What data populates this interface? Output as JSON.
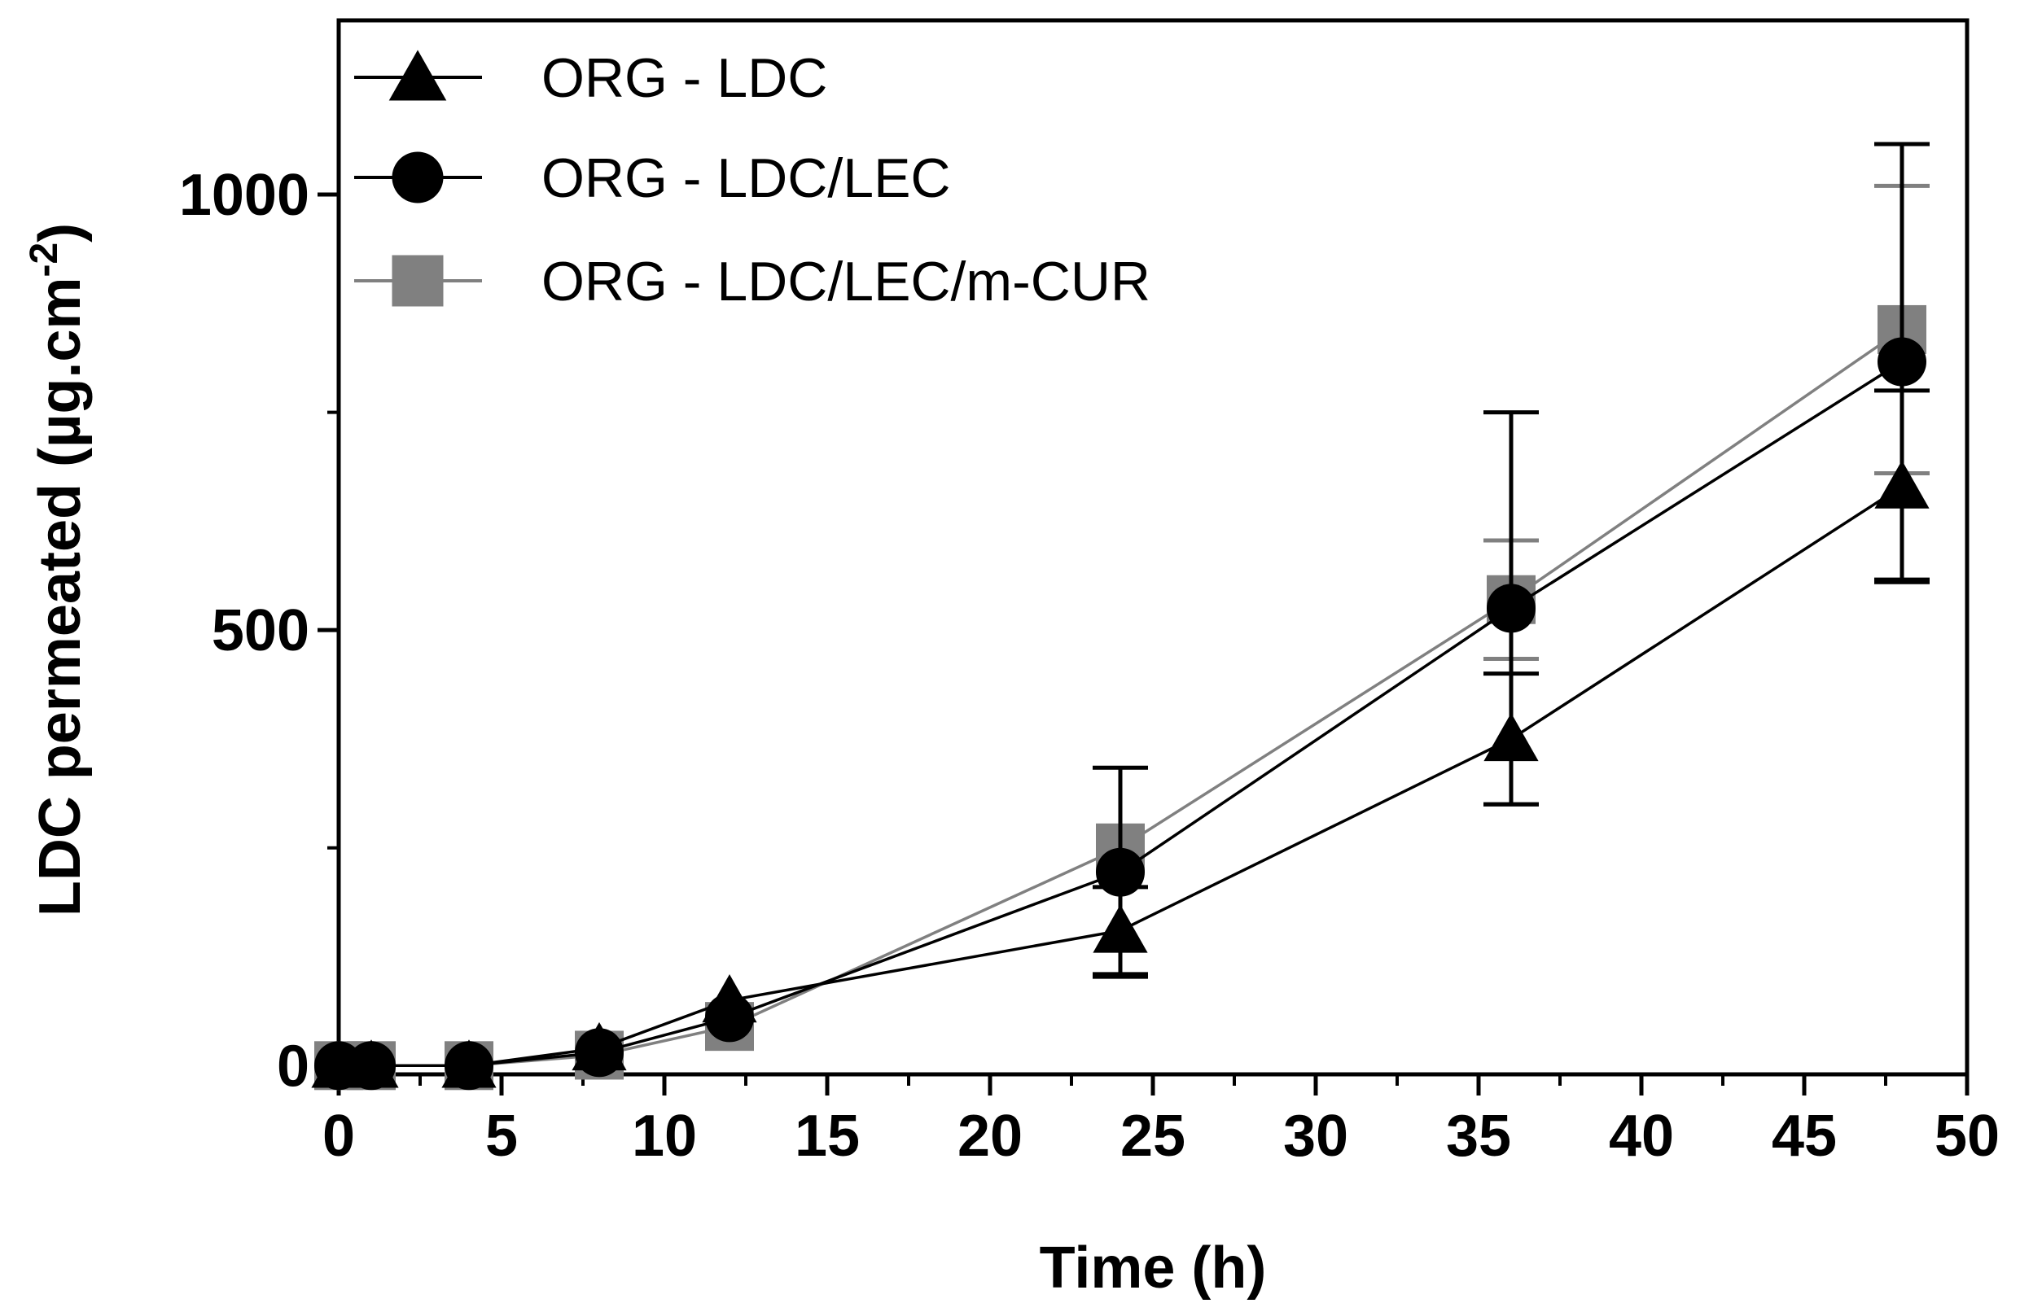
{
  "chart_data": {
    "type": "line",
    "title": "",
    "xlabel": "Time (h)",
    "ylabel": "LDC permeated (µg.cm",
    "ylabel_superscript": "-2",
    "ylabel_close": ")",
    "xlim": [
      0,
      50
    ],
    "ylim": [
      -10,
      1200
    ],
    "x_major_ticks": [
      0,
      5,
      10,
      15,
      20,
      25,
      30,
      35,
      40,
      45,
      50
    ],
    "x_tick_labels": [
      "0",
      "5",
      "10",
      "15",
      "20",
      "25",
      "30",
      "35",
      "40",
      "45",
      "50"
    ],
    "x_minor_ticks": [
      2.5,
      7.5,
      12.5,
      17.5,
      22.5,
      27.5,
      32.5,
      37.5,
      42.5,
      47.5
    ],
    "y_major_ticks": [
      0,
      500,
      1000
    ],
    "y_tick_labels": [
      "0",
      "500",
      "1000"
    ],
    "y_minor_ticks": [
      250,
      750
    ],
    "grid": false,
    "legend_position": "top-left",
    "series": [
      {
        "name": "ORG - LDC/LEC/m-CUR",
        "marker": "square",
        "color": "#808080",
        "x": [
          0,
          1,
          4,
          8,
          12,
          24,
          36,
          48
        ],
        "y": [
          0,
          0,
          0,
          12,
          45,
          250,
          535,
          845
        ],
        "err": [
          0,
          0,
          0,
          0,
          0,
          0,
          68,
          165
        ]
      },
      {
        "name": "ORG - LDC/LEC",
        "marker": "circle",
        "color": "#000000",
        "x": [
          0,
          1,
          4,
          8,
          12,
          24,
          36,
          48
        ],
        "y": [
          0,
          0,
          0,
          15,
          55,
          222,
          525,
          808
        ],
        "err": [
          0,
          0,
          0,
          0,
          0,
          120,
          225,
          250
        ]
      },
      {
        "name": "ORG - LDC",
        "marker": "triangle",
        "color": "#000000",
        "x": [
          0,
          1,
          4,
          8,
          12,
          24,
          36,
          48
        ],
        "y": [
          0,
          0,
          0,
          20,
          75,
          155,
          375,
          665
        ],
        "err": [
          0,
          0,
          0,
          0,
          0,
          50,
          75,
          110
        ]
      }
    ],
    "legend": [
      {
        "label": "ORG - LDC",
        "marker": "triangle",
        "color": "#000000"
      },
      {
        "label": "ORG - LDC/LEC",
        "marker": "circle",
        "color": "#000000"
      },
      {
        "label": "ORG - LDC/LEC/m-CUR",
        "marker": "square",
        "color": "#808080"
      }
    ]
  }
}
